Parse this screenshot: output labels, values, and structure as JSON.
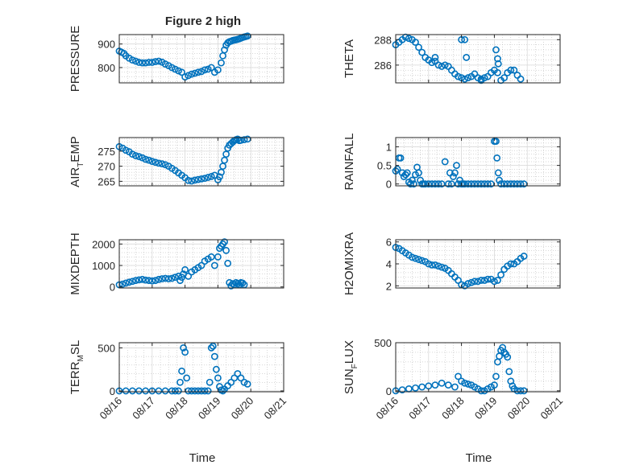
{
  "figure": {
    "title": "Figure 2 high",
    "xlabel": "Time",
    "x_ticks": [
      "08/16",
      "08/17",
      "08/18",
      "08/19",
      "08/20",
      "08/21"
    ],
    "marker_color": "#0072bd",
    "axes_color": "#262626",
    "grid_color": "#b0b0b0"
  },
  "chart_data": [
    {
      "type": "scatter",
      "title": "Figure 2 high",
      "ylabel": "PRESSURE",
      "ylim": [
        735,
        940
      ],
      "yticks": [
        800,
        900
      ],
      "x_range": [
        "08/16",
        "08/21"
      ],
      "x": [
        0.0,
        0.07,
        0.14,
        0.2,
        0.3,
        0.4,
        0.5,
        0.6,
        0.7,
        0.8,
        0.9,
        1.0,
        1.1,
        1.2,
        1.3,
        1.4,
        1.5,
        1.6,
        1.7,
        1.8,
        1.9,
        2.0,
        2.1,
        2.2,
        2.3,
        2.4,
        2.5,
        2.6,
        2.7,
        2.8,
        2.9,
        3.0,
        3.1,
        3.15,
        3.2,
        3.25,
        3.3,
        3.35,
        3.4,
        3.45,
        3.5,
        3.55,
        3.6,
        3.65,
        3.7,
        3.75,
        3.8,
        3.85,
        3.9
      ],
      "y": [
        870,
        865,
        860,
        850,
        840,
        832,
        827,
        822,
        820,
        820,
        822,
        822,
        825,
        827,
        823,
        815,
        808,
        800,
        793,
        786,
        780,
        760,
        766,
        772,
        776,
        780,
        783,
        790,
        793,
        800,
        780,
        790,
        820,
        850,
        875,
        895,
        905,
        910,
        912,
        915,
        917,
        918,
        920,
        922,
        925,
        928,
        930,
        932,
        934
      ]
    },
    {
      "type": "scatter",
      "ylabel": "THETA",
      "ylim": [
        284.6,
        288.4
      ],
      "yticks": [
        286,
        288
      ],
      "x_range": [
        "08/16",
        "08/21"
      ],
      "x": [
        0.0,
        0.1,
        0.2,
        0.3,
        0.4,
        0.5,
        0.6,
        0.7,
        0.8,
        0.9,
        1.0,
        1.1,
        1.2,
        1.3,
        1.4,
        1.5,
        1.6,
        1.7,
        1.8,
        1.9,
        2.0,
        2.1,
        2.2,
        2.3,
        2.4,
        2.5,
        2.6,
        2.7,
        2.8,
        2.9,
        3.0,
        3.1,
        3.2,
        3.3,
        3.4,
        3.5,
        3.6,
        3.7,
        3.8,
        2.0,
        2.1,
        2.15,
        3.05,
        3.1,
        3.12,
        1.2,
        2.6
      ],
      "y": [
        287.6,
        287.8,
        288.0,
        288.2,
        288.1,
        288.0,
        287.8,
        287.4,
        287.0,
        286.6,
        286.4,
        286.2,
        286.3,
        286.0,
        285.9,
        286.0,
        285.9,
        285.6,
        285.3,
        285.1,
        285.0,
        284.9,
        285.0,
        285.1,
        285.3,
        285.0,
        284.8,
        285.0,
        285.1,
        285.4,
        285.6,
        285.4,
        284.8,
        285.0,
        285.4,
        285.6,
        285.6,
        285.2,
        284.9,
        288.0,
        288.0,
        286.6,
        287.2,
        286.5,
        286.1,
        286.6,
        284.9
      ]
    },
    {
      "type": "scatter",
      "ylabel": "AIR_TEMP",
      "ylim": [
        263.5,
        279.5
      ],
      "yticks": [
        265,
        270,
        275
      ],
      "x_range": [
        "08/16",
        "08/21"
      ],
      "x": [
        0.0,
        0.1,
        0.2,
        0.3,
        0.4,
        0.5,
        0.6,
        0.7,
        0.8,
        0.9,
        1.0,
        1.1,
        1.2,
        1.3,
        1.4,
        1.5,
        1.6,
        1.7,
        1.8,
        1.9,
        2.0,
        2.1,
        2.2,
        2.3,
        2.4,
        2.5,
        2.6,
        2.7,
        2.8,
        2.9,
        3.0,
        3.05,
        3.1,
        3.15,
        3.2,
        3.25,
        3.3,
        3.35,
        3.4,
        3.45,
        3.5,
        3.55,
        3.6,
        3.65,
        3.7,
        3.8,
        3.9
      ],
      "y": [
        276.5,
        276.0,
        275.3,
        274.8,
        274.0,
        273.5,
        273.2,
        272.8,
        272.3,
        272.0,
        271.6,
        271.3,
        271.0,
        270.8,
        270.5,
        270.0,
        269.3,
        268.6,
        267.8,
        267.0,
        266.2,
        265.3,
        265.1,
        265.4,
        265.6,
        265.8,
        266.0,
        266.3,
        266.6,
        267.0,
        265.5,
        266.5,
        268.0,
        270.0,
        272.0,
        274.0,
        276.0,
        277.0,
        277.5,
        278.0,
        278.5,
        278.8,
        279.0,
        278.5,
        278.6,
        278.8,
        279.0
      ]
    },
    {
      "type": "scatter",
      "ylabel": "RAINFALL",
      "ylim": [
        -0.05,
        1.25
      ],
      "yticks": [
        0,
        0.5,
        1
      ],
      "x_range": [
        "08/16",
        "08/21"
      ],
      "x": [
        0.0,
        0.05,
        0.1,
        0.15,
        0.2,
        0.25,
        0.3,
        0.35,
        0.4,
        0.45,
        0.5,
        0.55,
        0.6,
        0.65,
        0.7,
        0.75,
        0.8,
        0.85,
        0.9,
        1.0,
        1.1,
        1.2,
        1.3,
        1.4,
        1.5,
        1.6,
        1.65,
        1.7,
        1.75,
        1.8,
        1.85,
        1.9,
        1.95,
        2.0,
        2.05,
        2.1,
        2.2,
        2.3,
        2.4,
        2.5,
        2.6,
        2.7,
        2.8,
        2.9,
        3.0,
        3.05,
        3.08,
        3.12,
        3.15,
        3.2,
        3.3,
        3.4,
        3.5,
        3.6,
        3.7,
        3.8,
        3.9
      ],
      "y": [
        0.35,
        0.4,
        0.7,
        0.7,
        0.3,
        0.2,
        0.25,
        0.3,
        0.05,
        0.0,
        0.1,
        0.0,
        0.25,
        0.45,
        0.3,
        0.1,
        0.0,
        0.0,
        0.0,
        0.0,
        0.0,
        0.0,
        0.0,
        0.0,
        0.6,
        0.0,
        0.3,
        0.0,
        0.2,
        0.3,
        0.5,
        0.0,
        0.1,
        0.0,
        0.0,
        0.0,
        0.0,
        0.0,
        0.0,
        0.0,
        0.0,
        0.0,
        0.0,
        0.0,
        1.15,
        1.15,
        0.7,
        0.3,
        0.1,
        0.0,
        0.0,
        0.0,
        0.0,
        0.0,
        0.0,
        0.0,
        0.0
      ]
    },
    {
      "type": "scatter",
      "ylabel": "MIXDEPTH",
      "ylim": [
        -50,
        2200
      ],
      "yticks": [
        0,
        1000,
        2000
      ],
      "x_range": [
        "08/16",
        "08/21"
      ],
      "x": [
        0.0,
        0.1,
        0.2,
        0.3,
        0.4,
        0.5,
        0.6,
        0.7,
        0.8,
        0.9,
        1.0,
        1.1,
        1.2,
        1.3,
        1.4,
        1.5,
        1.6,
        1.7,
        1.8,
        1.85,
        1.9,
        1.95,
        2.0,
        2.1,
        2.2,
        2.3,
        2.4,
        2.5,
        2.6,
        2.7,
        2.8,
        2.9,
        3.0,
        3.05,
        3.1,
        3.15,
        3.2,
        3.25,
        3.3,
        3.35,
        3.4,
        3.45,
        3.5,
        3.55,
        3.6,
        3.65,
        3.7,
        3.75,
        3.8
      ],
      "y": [
        100,
        130,
        180,
        220,
        260,
        300,
        330,
        350,
        320,
        300,
        280,
        300,
        350,
        380,
        400,
        380,
        400,
        450,
        500,
        300,
        450,
        600,
        800,
        500,
        700,
        800,
        900,
        1000,
        1200,
        1300,
        1400,
        1000,
        1400,
        1800,
        1900,
        2000,
        2100,
        1700,
        1100,
        200,
        50,
        150,
        100,
        200,
        150,
        100,
        200,
        180,
        100
      ]
    },
    {
      "type": "scatter",
      "ylabel": "H2OMIXRA",
      "ylim": [
        1.8,
        6.2
      ],
      "yticks": [
        2,
        4,
        6
      ],
      "x_range": [
        "08/16",
        "08/21"
      ],
      "x": [
        0.0,
        0.1,
        0.2,
        0.3,
        0.4,
        0.5,
        0.6,
        0.7,
        0.8,
        0.9,
        1.0,
        1.1,
        1.2,
        1.3,
        1.4,
        1.5,
        1.6,
        1.7,
        1.8,
        1.9,
        2.0,
        2.1,
        2.2,
        2.3,
        2.4,
        2.5,
        2.6,
        2.7,
        2.8,
        2.9,
        3.0,
        3.1,
        3.2,
        3.3,
        3.4,
        3.5,
        3.6,
        3.7,
        3.8,
        3.9
      ],
      "y": [
        5.5,
        5.4,
        5.2,
        5.0,
        4.8,
        4.6,
        4.5,
        4.4,
        4.3,
        4.2,
        4.0,
        3.9,
        3.9,
        3.8,
        3.7,
        3.6,
        3.4,
        3.1,
        2.8,
        2.5,
        2.1,
        2.0,
        2.2,
        2.3,
        2.4,
        2.4,
        2.5,
        2.5,
        2.6,
        2.6,
        2.4,
        2.5,
        3.0,
        3.5,
        3.8,
        4.0,
        4.0,
        4.2,
        4.5,
        4.7
      ]
    },
    {
      "type": "scatter",
      "ylabel": "TERR_MSL",
      "ylim": [
        -10,
        560
      ],
      "yticks": [
        0,
        500
      ],
      "x_range": [
        "08/16",
        "08/21"
      ],
      "x": [
        0.0,
        0.2,
        0.4,
        0.6,
        0.8,
        1.0,
        1.2,
        1.4,
        1.6,
        1.7,
        1.8,
        1.85,
        1.9,
        1.95,
        2.0,
        2.05,
        2.1,
        2.2,
        2.3,
        2.4,
        2.5,
        2.6,
        2.7,
        2.75,
        2.8,
        2.85,
        2.9,
        2.95,
        3.0,
        3.05,
        3.1,
        3.15,
        3.2,
        3.3,
        3.4,
        3.5,
        3.6,
        3.7,
        3.8,
        3.9
      ],
      "y": [
        0,
        0,
        0,
        0,
        0,
        0,
        0,
        0,
        0,
        0,
        0,
        100,
        230,
        500,
        450,
        150,
        0,
        0,
        0,
        0,
        0,
        0,
        0,
        100,
        500,
        520,
        400,
        250,
        150,
        50,
        10,
        0,
        20,
        60,
        100,
        150,
        200,
        150,
        100,
        80
      ]
    },
    {
      "type": "scatter",
      "ylabel": "SUN_FLUX",
      "ylim": [
        -10,
        500
      ],
      "yticks": [
        0,
        500
      ],
      "x_range": [
        "08/16",
        "08/21"
      ],
      "x": [
        0.0,
        0.2,
        0.4,
        0.6,
        0.8,
        1.0,
        1.2,
        1.4,
        1.6,
        1.8,
        1.9,
        2.0,
        2.1,
        2.2,
        2.3,
        2.4,
        2.5,
        2.6,
        2.7,
        2.8,
        2.9,
        3.0,
        3.05,
        3.1,
        3.15,
        3.2,
        3.25,
        3.3,
        3.35,
        3.4,
        3.45,
        3.5,
        3.55,
        3.6,
        3.7,
        3.8,
        3.9
      ],
      "y": [
        0,
        10,
        20,
        30,
        40,
        50,
        60,
        80,
        60,
        40,
        150,
        100,
        80,
        70,
        60,
        40,
        20,
        0,
        0,
        20,
        40,
        60,
        150,
        300,
        360,
        420,
        450,
        400,
        380,
        350,
        200,
        100,
        50,
        20,
        0,
        0,
        0
      ]
    }
  ]
}
